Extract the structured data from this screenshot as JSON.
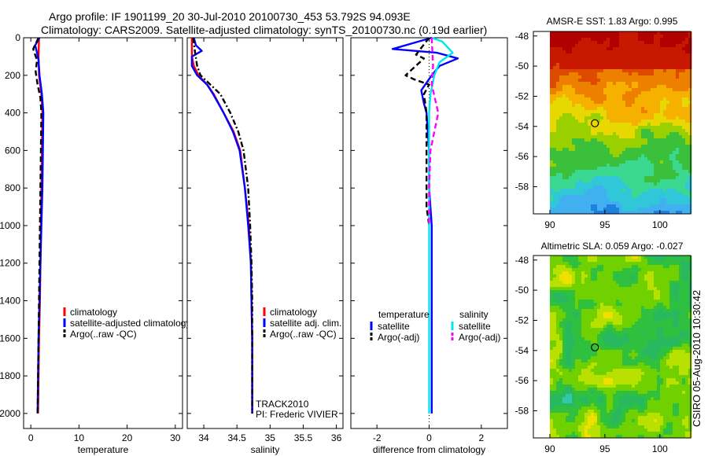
{
  "header": {
    "line1": "Argo profile: IF 1901199_20 30-Jul-2010 20100730_453 53.792S 94.093E",
    "line2": "Climatology: CARS2009. Satellite-adjusted climatology: synTS_20100730.nc (0.19d earlier)"
  },
  "colors": {
    "climatology": "#ff0000",
    "satellite": "#0000ff",
    "argo": "#000000",
    "satellite_sal": "#00e5ee",
    "argo_sal": "#ff00ff"
  },
  "chart_data": [
    {
      "id": "temperature",
      "type": "line",
      "xlabel": "temperature",
      "ylabel": "",
      "xlim": [
        -1.5,
        31.5
      ],
      "ylim": [
        0,
        2080
      ],
      "y_inverted": true,
      "xticks": [
        0,
        10,
        20,
        30
      ],
      "xticklabels": [
        "0",
        "10",
        "20",
        "30"
      ],
      "yticks": [
        0,
        200,
        400,
        600,
        800,
        1000,
        1200,
        1400,
        1600,
        1800,
        2000
      ],
      "yticklabels": [
        "0",
        "200",
        "400",
        "600",
        "800",
        "1000",
        "1200",
        "1400",
        "1600",
        "1800",
        "2000"
      ],
      "legend": [
        "climatology",
        "satellite-adjusted climatology",
        "Argo(..raw -QC)"
      ],
      "legend_location": "lower-right",
      "series": [
        {
          "name": "climatology",
          "color": "#ff0000",
          "dash": "solid",
          "points": [
            [
              1.7,
              0
            ],
            [
              1.6,
              100
            ],
            [
              1.7,
              200
            ],
            [
              2.2,
              300
            ],
            [
              2.4,
              400
            ],
            [
              2.3,
              600
            ],
            [
              2.2,
              800
            ],
            [
              2.1,
              1000
            ],
            [
              2.0,
              1200
            ],
            [
              1.9,
              1400
            ],
            [
              1.7,
              1600
            ],
            [
              1.6,
              1800
            ],
            [
              1.5,
              2000
            ]
          ]
        },
        {
          "name": "satellite-adjusted climatology",
          "color": "#0000ff",
          "dash": "solid",
          "points": [
            [
              1.8,
              0
            ],
            [
              0.9,
              40
            ],
            [
              1.3,
              80
            ],
            [
              1.6,
              120
            ],
            [
              1.8,
              200
            ],
            [
              2.3,
              300
            ],
            [
              2.6,
              400
            ],
            [
              2.5,
              600
            ],
            [
              2.4,
              800
            ],
            [
              2.2,
              1000
            ],
            [
              2.0,
              1200
            ],
            [
              1.8,
              1400
            ],
            [
              1.6,
              1600
            ],
            [
              1.5,
              1800
            ],
            [
              1.4,
              2000
            ]
          ]
        },
        {
          "name": "Argo(..raw -QC)",
          "color": "#000000",
          "dash": "dash",
          "points": [
            [
              1.6,
              0
            ],
            [
              0.5,
              60
            ],
            [
              1.3,
              120
            ],
            [
              1.0,
              180
            ],
            [
              1.4,
              250
            ],
            [
              2.0,
              320
            ],
            [
              2.2,
              400
            ],
            [
              2.1,
              600
            ],
            [
              2.0,
              800
            ],
            [
              1.9,
              1000
            ],
            [
              1.8,
              1200
            ],
            [
              1.7,
              1400
            ],
            [
              1.6,
              1600
            ],
            [
              1.5,
              1800
            ],
            [
              1.4,
              2000
            ]
          ]
        }
      ]
    },
    {
      "id": "salinity",
      "type": "line",
      "xlabel": "salinity",
      "ylabel": "",
      "xlim": [
        33.75,
        36.1
      ],
      "ylim": [
        0,
        2080
      ],
      "y_inverted": true,
      "xticks": [
        34,
        34.5,
        35,
        35.5,
        36
      ],
      "xticklabels": [
        "34",
        "34.5",
        "35",
        "35.5",
        "36"
      ],
      "legend": [
        "climatology",
        "satellite adj. clim.",
        "Argo(..raw -QC)"
      ],
      "legend_location": "lower-right",
      "annotations": [
        "TRACK2010",
        "PI: Frederic VIVIER"
      ],
      "series": [
        {
          "name": "climatology",
          "color": "#ff0000",
          "dash": "solid",
          "points": [
            [
              33.82,
              0
            ],
            [
              33.82,
              100
            ],
            [
              33.85,
              150
            ],
            [
              33.92,
              200
            ],
            [
              34.05,
              250
            ],
            [
              34.15,
              300
            ],
            [
              34.3,
              400
            ],
            [
              34.45,
              500
            ],
            [
              34.55,
              600
            ],
            [
              34.62,
              800
            ],
            [
              34.68,
              1000
            ],
            [
              34.71,
              1200
            ],
            [
              34.72,
              1400
            ],
            [
              34.73,
              1600
            ],
            [
              34.73,
              1800
            ],
            [
              34.73,
              2000
            ]
          ]
        },
        {
          "name": "satellite adj. clim.",
          "color": "#0000ff",
          "dash": "solid",
          "points": [
            [
              33.85,
              0
            ],
            [
              33.88,
              40
            ],
            [
              33.97,
              70
            ],
            [
              33.82,
              100
            ],
            [
              33.82,
              150
            ],
            [
              33.9,
              200
            ],
            [
              34.05,
              250
            ],
            [
              34.14,
              300
            ],
            [
              34.3,
              400
            ],
            [
              34.44,
              500
            ],
            [
              34.54,
              600
            ],
            [
              34.62,
              800
            ],
            [
              34.67,
              1000
            ],
            [
              34.71,
              1200
            ],
            [
              34.72,
              1400
            ],
            [
              34.73,
              1600
            ],
            [
              34.73,
              1800
            ],
            [
              34.73,
              2000
            ]
          ]
        },
        {
          "name": "Argo(..raw -QC)",
          "color": "#000000",
          "dash": "dashdot",
          "points": [
            [
              33.84,
              0
            ],
            [
              33.86,
              60
            ],
            [
              33.9,
              150
            ],
            [
              33.95,
              200
            ],
            [
              34.1,
              250
            ],
            [
              34.25,
              300
            ],
            [
              34.4,
              400
            ],
            [
              34.52,
              500
            ],
            [
              34.6,
              600
            ],
            [
              34.67,
              800
            ],
            [
              34.7,
              1000
            ],
            [
              34.72,
              1200
            ],
            [
              34.73,
              1400
            ],
            [
              34.73,
              1600
            ],
            [
              34.73,
              1800
            ],
            [
              34.73,
              2000
            ]
          ]
        }
      ]
    },
    {
      "id": "difference",
      "type": "line",
      "xlabel": "difference from climatology",
      "ylabel": "",
      "xlim": [
        -3.0,
        3.0
      ],
      "ylim": [
        0,
        2080
      ],
      "y_inverted": true,
      "xticks": [
        -2,
        0,
        2
      ],
      "xticklabels": [
        "-2",
        "0",
        "2"
      ],
      "legend_groups": [
        {
          "title": "temperature",
          "entries": [
            "satellite",
            "Argo(-adj)"
          ]
        },
        {
          "title": "salinity",
          "entries": [
            "satellite",
            "Argo(-adj)"
          ]
        }
      ],
      "legend_location": "lower-center",
      "series": [
        {
          "name": "temperature satellite",
          "color": "#0000ff",
          "dash": "solid",
          "points": [
            [
              0.1,
              0
            ],
            [
              -1.4,
              60
            ],
            [
              0.3,
              80
            ],
            [
              1.1,
              110
            ],
            [
              0.4,
              150
            ],
            [
              0.1,
              200
            ],
            [
              -0.3,
              280
            ],
            [
              -0.2,
              350
            ],
            [
              -0.1,
              400
            ],
            [
              0,
              600
            ],
            [
              0,
              800
            ],
            [
              0.1,
              1000
            ],
            [
              0.1,
              1200
            ],
            [
              0.1,
              1400
            ],
            [
              0.1,
              1600
            ],
            [
              0.1,
              1800
            ],
            [
              0.1,
              2000
            ]
          ]
        },
        {
          "name": "temperature Argo(-adj)",
          "color": "#000000",
          "dash": "dash",
          "points": [
            [
              0,
              0
            ],
            [
              -0.5,
              90
            ],
            [
              -0.2,
              110
            ],
            [
              -0.9,
              200
            ],
            [
              -0.6,
              220
            ],
            [
              0,
              250
            ],
            [
              -0.2,
              300
            ],
            [
              -0.1,
              400
            ],
            [
              -0.1,
              500
            ],
            [
              -0.1,
              600
            ],
            [
              -0.1,
              700
            ],
            [
              -0.1,
              900
            ],
            [
              0,
              1000
            ]
          ]
        },
        {
          "name": "salinity satellite",
          "color": "#00e5ee",
          "dash": "solid",
          "points": [
            [
              0.1,
              0
            ],
            [
              0.5,
              20
            ],
            [
              0.9,
              80
            ],
            [
              0.4,
              130
            ],
            [
              0.2,
              200
            ],
            [
              0.05,
              300
            ],
            [
              0,
              400
            ],
            [
              0,
              600
            ],
            [
              0,
              800
            ],
            [
              0,
              1000
            ],
            [
              0,
              1200
            ],
            [
              0,
              1400
            ],
            [
              0,
              1600
            ],
            [
              0,
              1800
            ],
            [
              0,
              2000
            ]
          ]
        },
        {
          "name": "salinity Argo(-adj)",
          "color": "#ff00ff",
          "dash": "dash",
          "points": [
            [
              0.1,
              0
            ],
            [
              0.15,
              150
            ],
            [
              0.1,
              250
            ],
            [
              0.35,
              400
            ],
            [
              0.2,
              500
            ],
            [
              0.05,
              600
            ],
            [
              0.0,
              800
            ],
            [
              0.0,
              1000
            ]
          ]
        }
      ]
    },
    {
      "id": "amsre-sst",
      "type": "heatmap",
      "title": "AMSR-E SST: 1.83  Argo: 0.995",
      "xlim": [
        88.5,
        102.8
      ],
      "ylim": [
        -59.8,
        -47.7
      ],
      "xticks": [
        90,
        95,
        100
      ],
      "xticklabels": [
        "90",
        "95",
        "100"
      ],
      "yticks": [
        -48,
        -50,
        -52,
        -54,
        -56,
        -58
      ],
      "yticklabels": [
        "-48",
        "-50",
        "-52",
        "-54",
        "-56",
        "-58"
      ],
      "data_extent_lon": [
        90,
        102.8
      ],
      "marker": {
        "lon": 94.093,
        "lat": -53.792
      },
      "grid_bands": [
        "#b00000",
        "#c81800",
        "#dd4a00",
        "#ee8000",
        "#f5b000",
        "#e6d800",
        "#9ad000",
        "#3ac03a",
        "#3ad890",
        "#30c8d8",
        "#40b0f0",
        "#2080e0"
      ]
    },
    {
      "id": "altimetric-sla",
      "type": "heatmap",
      "title": "Altimetric SLA: 0.059  Argo: -0.027",
      "xlim": [
        88.5,
        102.8
      ],
      "ylim": [
        -59.8,
        -47.7
      ],
      "xticks": [
        90,
        95,
        100
      ],
      "xticklabels": [
        "90",
        "95",
        "100"
      ],
      "yticks": [
        -48,
        -50,
        -52,
        -54,
        -56,
        -58
      ],
      "yticklabels": [
        "-48",
        "-50",
        "-52",
        "-54",
        "-56",
        "-58"
      ],
      "data_extent_lon": [
        90,
        102.8
      ],
      "marker": {
        "lon": 94.093,
        "lat": -53.792
      },
      "palette": [
        "#f0e000",
        "#b8e000",
        "#70d000",
        "#30c040",
        "#28b860",
        "#30c8a8",
        "#30b8e8",
        "#2890e8"
      ]
    }
  ],
  "footer": {
    "stamp": "CSIRO 05-Aug-2010 10:30:42"
  }
}
